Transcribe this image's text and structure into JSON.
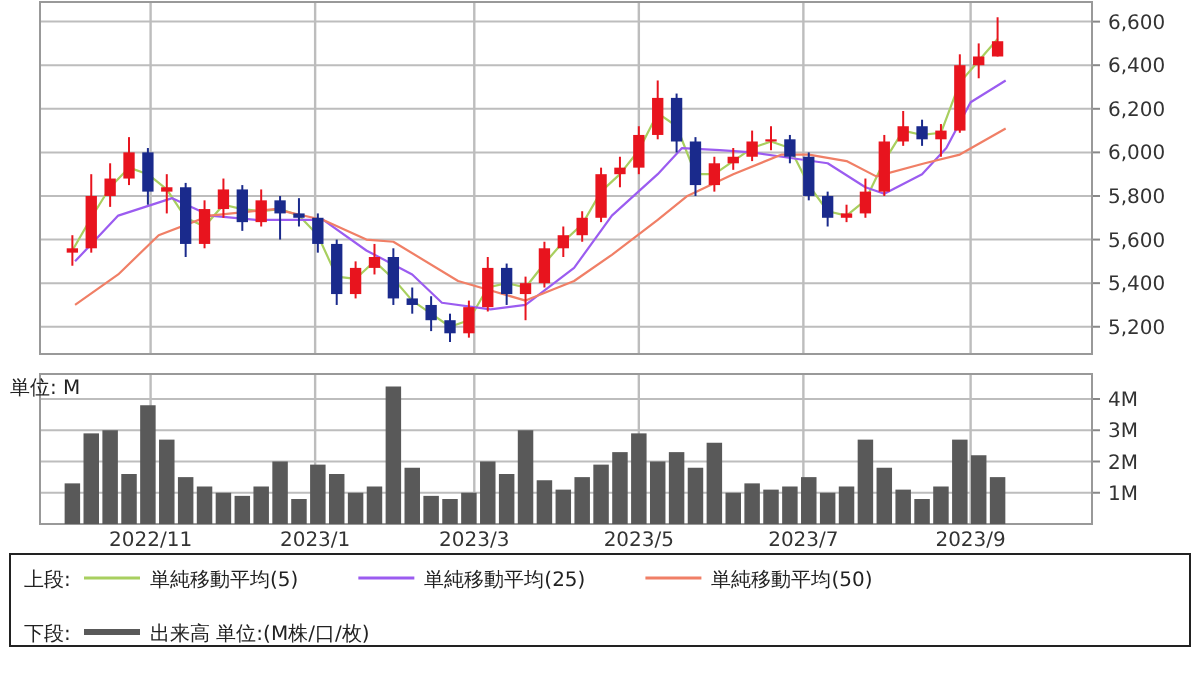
{
  "chart_data": [
    {
      "type": "candlestick",
      "legend_title": "上段:",
      "legend": "bottom",
      "grid": true,
      "tick_labels": "y",
      "x": [
        "2022-10-03",
        "2022-10-10",
        "2022-10-17",
        "2022-10-24",
        "2022-10-31",
        "2022-11-07",
        "2022-11-14",
        "2022-11-21",
        "2022-11-28",
        "2022-12-05",
        "2022-12-12",
        "2022-12-19",
        "2022-12-26",
        "2023-01-02",
        "2023-01-09",
        "2023-01-16",
        "2023-01-23",
        "2023-01-30",
        "2023-02-06",
        "2023-02-13",
        "2023-02-20",
        "2023-02-27",
        "2023-03-06",
        "2023-03-13",
        "2023-03-20",
        "2023-03-27",
        "2023-04-03",
        "2023-04-10",
        "2023-04-17",
        "2023-04-24",
        "2023-05-01",
        "2023-05-08",
        "2023-05-15",
        "2023-05-22",
        "2023-05-29",
        "2023-06-05",
        "2023-06-12",
        "2023-06-19",
        "2023-06-26",
        "2023-07-03",
        "2023-07-10",
        "2023-07-17",
        "2023-07-24",
        "2023-07-31",
        "2023-08-07",
        "2023-08-14",
        "2023-08-21",
        "2023-08-28",
        "2023-09-04",
        "2023-09-11"
      ],
      "ohlc": [
        [
          5540,
          5620,
          5480,
          5560
        ],
        [
          5560,
          5900,
          5540,
          5800
        ],
        [
          5800,
          5950,
          5750,
          5880
        ],
        [
          5880,
          6070,
          5850,
          6000
        ],
        [
          6000,
          6020,
          5760,
          5820
        ],
        [
          5820,
          5900,
          5720,
          5840
        ],
        [
          5840,
          5860,
          5520,
          5580
        ],
        [
          5580,
          5780,
          5560,
          5740
        ],
        [
          5740,
          5880,
          5700,
          5830
        ],
        [
          5830,
          5850,
          5640,
          5680
        ],
        [
          5680,
          5830,
          5660,
          5780
        ],
        [
          5780,
          5800,
          5600,
          5720
        ],
        [
          5720,
          5790,
          5660,
          5700
        ],
        [
          5700,
          5720,
          5540,
          5580
        ],
        [
          5580,
          5600,
          5300,
          5350
        ],
        [
          5350,
          5500,
          5330,
          5470
        ],
        [
          5470,
          5580,
          5440,
          5520
        ],
        [
          5520,
          5560,
          5300,
          5330
        ],
        [
          5330,
          5380,
          5260,
          5300
        ],
        [
          5300,
          5340,
          5180,
          5230
        ],
        [
          5230,
          5260,
          5130,
          5170
        ],
        [
          5170,
          5320,
          5150,
          5290
        ],
        [
          5290,
          5520,
          5270,
          5470
        ],
        [
          5470,
          5490,
          5300,
          5350
        ],
        [
          5350,
          5430,
          5230,
          5400
        ],
        [
          5400,
          5590,
          5380,
          5560
        ],
        [
          5560,
          5660,
          5520,
          5620
        ],
        [
          5620,
          5730,
          5590,
          5700
        ],
        [
          5700,
          5930,
          5680,
          5900
        ],
        [
          5900,
          5980,
          5840,
          5930
        ],
        [
          5930,
          6120,
          5900,
          6080
        ],
        [
          6080,
          6330,
          6060,
          6250
        ],
        [
          6250,
          6270,
          6000,
          6050
        ],
        [
          6050,
          6070,
          5800,
          5850
        ],
        [
          5850,
          5980,
          5820,
          5950
        ],
        [
          5950,
          6020,
          5920,
          5980
        ],
        [
          5980,
          6100,
          5960,
          6050
        ],
        [
          6050,
          6120,
          6010,
          6060
        ],
        [
          6060,
          6080,
          5950,
          5980
        ],
        [
          5980,
          6000,
          5780,
          5800
        ],
        [
          5800,
          5820,
          5660,
          5700
        ],
        [
          5700,
          5760,
          5680,
          5720
        ],
        [
          5720,
          5880,
          5700,
          5820
        ],
        [
          5820,
          6080,
          5800,
          6050
        ],
        [
          6050,
          6190,
          6030,
          6120
        ],
        [
          6120,
          6150,
          6030,
          6060
        ],
        [
          6060,
          6130,
          5980,
          6100
        ],
        [
          6100,
          6450,
          6090,
          6400
        ],
        [
          6400,
          6500,
          6340,
          6440
        ],
        [
          6440,
          6620,
          6440,
          6510
        ]
      ],
      "series": [
        {
          "type": "line",
          "name": "単純移動平均(5)",
          "color": "#a8cf5f",
          "x": [
            "2022-10-03",
            "2022-10-10",
            "2022-10-17",
            "2022-10-24",
            "2022-10-31",
            "2022-11-07",
            "2022-11-14",
            "2022-11-21",
            "2022-11-28",
            "2022-12-05",
            "2022-12-12",
            "2022-12-19",
            "2022-12-26",
            "2023-01-02",
            "2023-01-09",
            "2023-01-16",
            "2023-01-23",
            "2023-01-30",
            "2023-02-06",
            "2023-02-13",
            "2023-02-20",
            "2023-02-27",
            "2023-03-06",
            "2023-03-13",
            "2023-03-20",
            "2023-03-27",
            "2023-04-03",
            "2023-04-10",
            "2023-04-17",
            "2023-04-24",
            "2023-05-01",
            "2023-05-08",
            "2023-05-15",
            "2023-05-22",
            "2023-05-29",
            "2023-06-05",
            "2023-06-12",
            "2023-06-19",
            "2023-06-26",
            "2023-07-03",
            "2023-07-10",
            "2023-07-17",
            "2023-07-24",
            "2023-07-31",
            "2023-08-07",
            "2023-08-14",
            "2023-08-21",
            "2023-08-28",
            "2023-09-04",
            "2023-09-11"
          ],
          "values": [
            5550,
            5700,
            5840,
            5930,
            5900,
            5830,
            5700,
            5660,
            5760,
            5740,
            5730,
            5740,
            5710,
            5620,
            5430,
            5420,
            5500,
            5420,
            5320,
            5260,
            5200,
            5230,
            5380,
            5400,
            5380,
            5490,
            5590,
            5670,
            5820,
            5900,
            6010,
            6180,
            6120,
            5900,
            5900,
            5960,
            6020,
            6050,
            6020,
            5850,
            5730,
            5710,
            5780,
            5960,
            6100,
            6080,
            6090,
            6320,
            6420,
            6520
          ]
        },
        {
          "type": "line",
          "name": "単純移動平均(25)",
          "color": "#9b5cf0",
          "x": [
            "2022-10-04",
            "2022-10-20",
            "2022-11-09",
            "2022-11-23",
            "2022-12-10",
            "2023-01-04",
            "2023-01-20",
            "2023-02-06",
            "2023-02-17",
            "2023-03-07",
            "2023-03-20",
            "2023-04-07",
            "2023-04-21",
            "2023-05-08",
            "2023-05-17",
            "2023-05-31",
            "2023-06-12",
            "2023-06-23",
            "2023-07-10",
            "2023-07-24",
            "2023-07-31",
            "2023-08-14",
            "2023-08-23",
            "2023-09-01",
            "2023-09-14"
          ],
          "values": [
            5500,
            5710,
            5790,
            5710,
            5690,
            5690,
            5550,
            5440,
            5310,
            5280,
            5300,
            5470,
            5710,
            5900,
            6020,
            6010,
            6000,
            5980,
            5950,
            5840,
            5810,
            5900,
            6020,
            6230,
            6330
          ]
        },
        {
          "type": "line",
          "name": "単純移動平均(50)",
          "color": "#f07f66",
          "x": [
            "2022-10-04",
            "2022-10-20",
            "2022-11-04",
            "2022-11-23",
            "2022-12-17",
            "2023-01-04",
            "2023-01-20",
            "2023-01-30",
            "2023-02-23",
            "2023-03-20",
            "2023-04-07",
            "2023-04-21",
            "2023-05-08",
            "2023-05-19",
            "2023-06-05",
            "2023-06-23",
            "2023-07-03",
            "2023-07-17",
            "2023-07-28",
            "2023-08-15",
            "2023-08-28",
            "2023-09-14"
          ],
          "values": [
            5300,
            5440,
            5620,
            5710,
            5740,
            5690,
            5600,
            5590,
            5410,
            5320,
            5410,
            5530,
            5690,
            5800,
            5900,
            5990,
            5990,
            5960,
            5890,
            5950,
            5990,
            6110
          ]
        }
      ],
      "xlim": [
        "2022-09-21",
        "2023-10-16"
      ],
      "xticks": [
        {
          "value": "2022-11-01",
          "label": null
        },
        {
          "value": "2023-01-01",
          "label": null
        },
        {
          "value": "2023-03-01",
          "label": null
        },
        {
          "value": "2023-05-01",
          "label": null
        },
        {
          "value": "2023-07-01",
          "label": null
        },
        {
          "value": "2023-09-01",
          "label": null
        }
      ],
      "ylim": [
        5075,
        6690
      ],
      "yticks": [
        {
          "value": 5200,
          "label": "5,200"
        },
        {
          "value": 5400,
          "label": "5,400"
        },
        {
          "value": 5600,
          "label": "5,600"
        },
        {
          "value": 5800,
          "label": "5,800"
        },
        {
          "value": 6000,
          "label": "6,000"
        },
        {
          "value": 6200,
          "label": "6,200"
        },
        {
          "value": 6400,
          "label": "6,400"
        },
        {
          "value": 6600,
          "label": "6,600"
        }
      ]
    },
    {
      "type": "bar",
      "legend_title": "下段:",
      "legend": "bottom",
      "grid": true,
      "ylabel": "単位: M",
      "x": [
        "2022-10-03",
        "2022-10-10",
        "2022-10-17",
        "2022-10-24",
        "2022-10-31",
        "2022-11-07",
        "2022-11-14",
        "2022-11-21",
        "2022-11-28",
        "2022-12-05",
        "2022-12-12",
        "2022-12-19",
        "2022-12-26",
        "2023-01-02",
        "2023-01-09",
        "2023-01-16",
        "2023-01-23",
        "2023-01-30",
        "2023-02-06",
        "2023-02-13",
        "2023-02-20",
        "2023-02-27",
        "2023-03-06",
        "2023-03-13",
        "2023-03-20",
        "2023-03-27",
        "2023-04-03",
        "2023-04-10",
        "2023-04-17",
        "2023-04-24",
        "2023-05-01",
        "2023-05-08",
        "2023-05-15",
        "2023-05-22",
        "2023-05-29",
        "2023-06-05",
        "2023-06-12",
        "2023-06-19",
        "2023-06-26",
        "2023-07-03",
        "2023-07-10",
        "2023-07-17",
        "2023-07-24",
        "2023-07-31",
        "2023-08-07",
        "2023-08-14",
        "2023-08-21",
        "2023-08-28",
        "2023-09-04",
        "2023-09-11"
      ],
      "series": [
        {
          "name": "出来高 単位:(M株/口/枚)",
          "color": "#595959",
          "values": [
            1.3,
            2.9,
            3.0,
            1.6,
            3.8,
            2.7,
            1.5,
            1.2,
            1.0,
            0.9,
            1.2,
            2.0,
            0.8,
            1.9,
            1.6,
            1.0,
            1.2,
            4.4,
            1.8,
            0.9,
            0.8,
            1.0,
            2.0,
            1.6,
            3.0,
            1.4,
            1.1,
            1.5,
            1.9,
            2.3,
            2.9,
            2.0,
            2.3,
            1.8,
            2.6,
            1.0,
            1.3,
            1.1,
            1.2,
            1.5,
            1.0,
            1.2,
            2.7,
            1.8,
            1.1,
            0.8,
            1.2,
            2.7,
            2.2,
            1.5
          ]
        }
      ],
      "xlim": [
        "2022-09-21",
        "2023-10-16"
      ],
      "xticks": [
        {
          "value": "2022-11-01",
          "label": "2022/11"
        },
        {
          "value": "2023-01-01",
          "label": "2023/1"
        },
        {
          "value": "2023-03-01",
          "label": "2023/3"
        },
        {
          "value": "2023-05-01",
          "label": "2023/5"
        },
        {
          "value": "2023-07-01",
          "label": "2023/7"
        },
        {
          "value": "2023-09-01",
          "label": "2023/9"
        }
      ],
      "ylim": [
        0,
        4.8
      ],
      "yticks": [
        {
          "value": 1,
          "label": "1M"
        },
        {
          "value": 2,
          "label": "2M"
        },
        {
          "value": 3,
          "label": "3M"
        },
        {
          "value": 4,
          "label": "4M"
        }
      ]
    }
  ]
}
